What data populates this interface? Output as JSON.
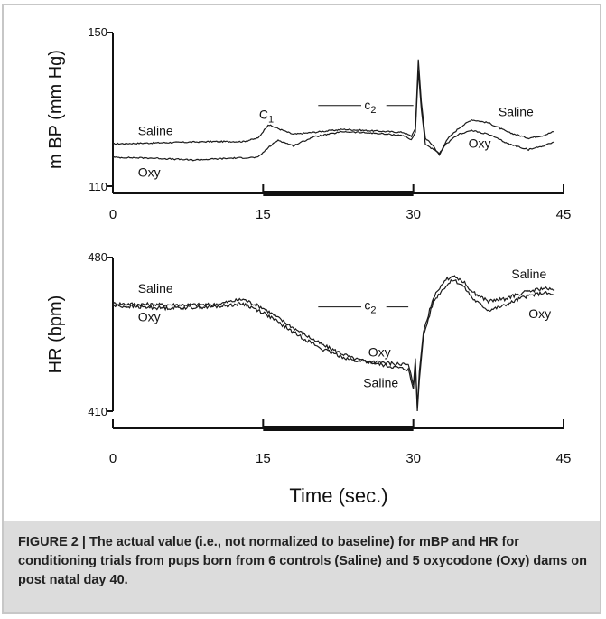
{
  "caption": "FIGURE 2 | The actual value (i.e., not normalized to baseline) for mBP and HR for conditioning trials from pups born from 6 controls (Saline) and 5 oxycodone (Oxy) dams on post natal day 40.",
  "xlabel": "Time (sec.)",
  "chart_data": [
    {
      "type": "line",
      "ylabel": "m BP (mm Hg)",
      "ylim": [
        110,
        150
      ],
      "yticks": [
        "150",
        "110"
      ],
      "xlim": [
        0,
        45
      ],
      "xticks": [
        "0",
        "15",
        "30",
        "45"
      ],
      "cs_period": [
        15,
        30
      ],
      "annotations": {
        "c1": "C",
        "c1_sub": "1",
        "c2": "c",
        "c2_sub": "2"
      },
      "series": [
        {
          "name": "Saline",
          "points": [
            [
              0,
              121
            ],
            [
              5,
              121.3
            ],
            [
              10,
              121.6
            ],
            [
              13,
              121.6
            ],
            [
              14.5,
              122.5
            ],
            [
              15.5,
              126
            ],
            [
              16.5,
              125
            ],
            [
              18,
              123.5
            ],
            [
              20,
              124
            ],
            [
              23,
              124.8
            ],
            [
              26,
              124.4
            ],
            [
              29,
              124
            ],
            [
              29.8,
              123
            ],
            [
              30.2,
              125
            ],
            [
              30.5,
              143
            ],
            [
              30.8,
              132
            ],
            [
              31.2,
              122.5
            ],
            [
              32,
              120.5
            ],
            [
              32.6,
              118
            ],
            [
              33.3,
              122
            ],
            [
              34.5,
              125
            ],
            [
              35.8,
              127.3
            ],
            [
              37.5,
              126.5
            ],
            [
              39.5,
              124
            ],
            [
              41.5,
              122.5
            ],
            [
              43,
              123.2
            ],
            [
              44,
              124.2
            ]
          ]
        },
        {
          "name": "Oxy",
          "points": [
            [
              0,
              117.5
            ],
            [
              4,
              117.3
            ],
            [
              8,
              116.8
            ],
            [
              12,
              117.3
            ],
            [
              14.5,
              117.5
            ],
            [
              15.5,
              120
            ],
            [
              16.5,
              122
            ],
            [
              18,
              120.5
            ],
            [
              20,
              122.8
            ],
            [
              23,
              124.2
            ],
            [
              26,
              123.8
            ],
            [
              29,
              123.2
            ],
            [
              29.8,
              122
            ],
            [
              30.2,
              124
            ],
            [
              30.5,
              140
            ],
            [
              30.8,
              130
            ],
            [
              31.2,
              121
            ],
            [
              32,
              119.5
            ],
            [
              32.6,
              118.5
            ],
            [
              33.3,
              121
            ],
            [
              34.5,
              123.5
            ],
            [
              35.8,
              124.5
            ],
            [
              37.5,
              123.5
            ],
            [
              39.5,
              121
            ],
            [
              41.5,
              119.5
            ],
            [
              43,
              120.5
            ],
            [
              44,
              121.5
            ]
          ]
        }
      ]
    },
    {
      "type": "line",
      "ylabel": "HR (bpm)",
      "ylim": [
        410,
        480
      ],
      "yticks": [
        "480",
        "410"
      ],
      "xlim": [
        0,
        45
      ],
      "xticks": [
        "0",
        "15",
        "30",
        "45"
      ],
      "cs_period": [
        15,
        30
      ],
      "annotations": {
        "c2": "c",
        "c2_sub": "2"
      },
      "series": [
        {
          "name": "Saline",
          "points": [
            [
              0,
              459
            ],
            [
              5,
              458.5
            ],
            [
              10,
              458.5
            ],
            [
              13,
              461
            ],
            [
              15,
              457
            ],
            [
              18,
              448
            ],
            [
              21,
              440
            ],
            [
              24,
              434
            ],
            [
              27,
              431
            ],
            [
              29.5,
              429
            ],
            [
              30,
              420
            ],
            [
              30.2,
              432
            ],
            [
              30.4,
              410
            ],
            [
              30.6,
              424
            ],
            [
              31,
              444
            ],
            [
              32,
              460
            ],
            [
              33,
              466
            ],
            [
              34,
              470
            ],
            [
              35,
              467
            ],
            [
              36,
              461
            ],
            [
              37.5,
              456
            ],
            [
              39,
              458
            ],
            [
              41,
              462
            ],
            [
              43,
              464
            ],
            [
              44,
              463
            ]
          ]
        },
        {
          "name": "Oxy",
          "points": [
            [
              0,
              458
            ],
            [
              5,
              457
            ],
            [
              10,
              457.5
            ],
            [
              13,
              459
            ],
            [
              15,
              455
            ],
            [
              18,
              446
            ],
            [
              21,
              438
            ],
            [
              24,
              433
            ],
            [
              27,
              432
            ],
            [
              29.5,
              431
            ],
            [
              30,
              422
            ],
            [
              30.2,
              434
            ],
            [
              30.4,
              412
            ],
            [
              30.6,
              428
            ],
            [
              31,
              446
            ],
            [
              32,
              462
            ],
            [
              33,
              469
            ],
            [
              34,
              472
            ],
            [
              35,
              469
            ],
            [
              36,
              464
            ],
            [
              37.5,
              460
            ],
            [
              39,
              461
            ],
            [
              41,
              464
            ],
            [
              43,
              466
            ],
            [
              44,
              465
            ]
          ]
        }
      ]
    }
  ]
}
